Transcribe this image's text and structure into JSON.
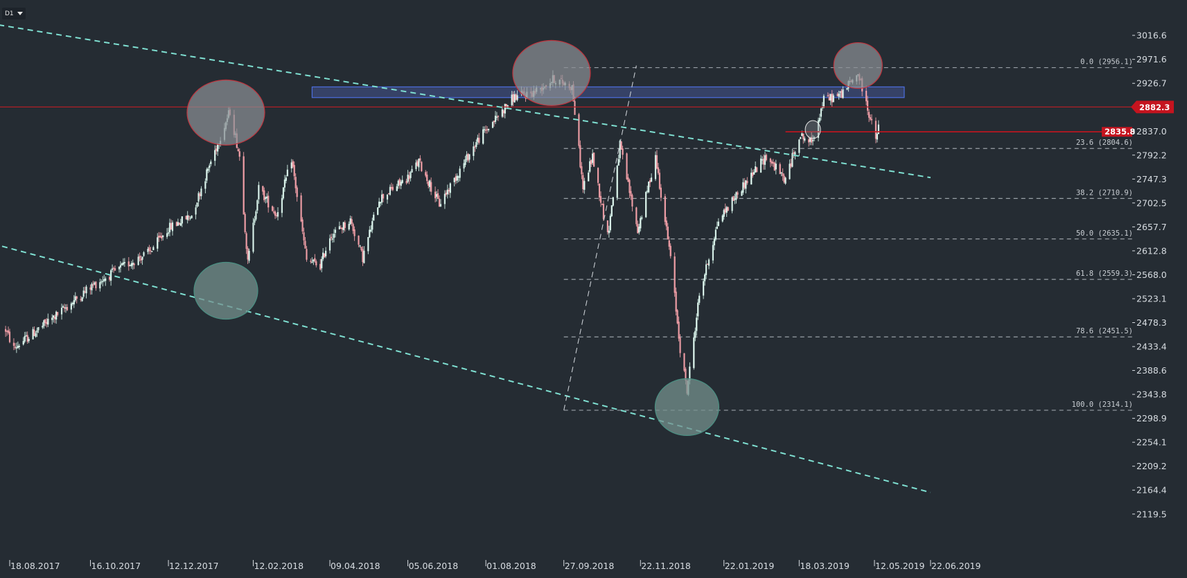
{
  "toolbar": {
    "timeframe": "D1"
  },
  "colors": {
    "background": "#252c33",
    "bull_candle": "#cfeee4",
    "bear_candle": "#ef9ea6",
    "trendline": "#7fe0d2",
    "fib_line": "#9aa1a8",
    "resistance_zone_fill": "#3c4a7a",
    "resistance_zone_border": "#4c6fe0",
    "price_line": "#b01f26",
    "price_badge": "#c5141f",
    "ellipse_top": "#8a8f94",
    "ellipse_bottom": "#74908d"
  },
  "chart_data": {
    "type": "candlestick",
    "title": "",
    "ylim": [
      2110,
      3040
    ],
    "x_ticks": [
      "18.08.2017",
      "16.10.2017",
      "12.12.2017",
      "12.02.2018",
      "09.04.2018",
      "05.06.2018",
      "01.08.2018",
      "27.09.2018",
      "22.11.2018",
      "22.01.2019",
      "18.03.2019",
      "12.05.2019",
      "22.06.2019"
    ],
    "y_ticks": [
      "3016.6",
      "2971.6",
      "2926.7",
      "2882.3",
      "2837.0",
      "2792.2",
      "2747.3",
      "2702.5",
      "2657.7",
      "2612.8",
      "2568.0",
      "2523.1",
      "2478.3",
      "2433.4",
      "2388.6",
      "2343.8",
      "2298.9",
      "2254.1",
      "2209.2",
      "2164.4",
      "2119.5"
    ],
    "y_tick_values": [
      3016.6,
      2971.6,
      2926.7,
      2882.3,
      2837.0,
      2792.2,
      2747.3,
      2702.5,
      2657.7,
      2612.8,
      2568.0,
      2523.1,
      2478.3,
      2433.4,
      2388.6,
      2343.8,
      2298.9,
      2254.1,
      2209.2,
      2164.4,
      2119.5
    ],
    "x_tick_dates": [
      "2017-08-18",
      "2017-10-16",
      "2017-12-12",
      "2018-02-12",
      "2018-04-09",
      "2018-06-05",
      "2018-08-01",
      "2018-09-27",
      "2018-11-22",
      "2019-01-22",
      "2019-03-18",
      "2019-05-12",
      "2019-06-22"
    ],
    "price_path": [
      [
        "2017-08-15",
        2465
      ],
      [
        "2017-08-21",
        2430
      ],
      [
        "2017-09-05",
        2460
      ],
      [
        "2017-09-25",
        2500
      ],
      [
        "2017-10-16",
        2545
      ],
      [
        "2017-11-10",
        2585
      ],
      [
        "2017-11-28",
        2610
      ],
      [
        "2017-12-12",
        2655
      ],
      [
        "2017-12-29",
        2680
      ],
      [
        "2018-01-12",
        2780
      ],
      [
        "2018-01-26",
        2875
      ],
      [
        "2018-02-02",
        2790
      ],
      [
        "2018-02-08",
        2590
      ],
      [
        "2018-02-16",
        2730
      ],
      [
        "2018-03-01",
        2680
      ],
      [
        "2018-03-12",
        2785
      ],
      [
        "2018-03-23",
        2595
      ],
      [
        "2018-04-02",
        2585
      ],
      [
        "2018-04-09",
        2640
      ],
      [
        "2018-04-24",
        2670
      ],
      [
        "2018-05-03",
        2600
      ],
      [
        "2018-05-15",
        2710
      ],
      [
        "2018-06-05",
        2750
      ],
      [
        "2018-06-13",
        2780
      ],
      [
        "2018-06-28",
        2700
      ],
      [
        "2018-07-12",
        2760
      ],
      [
        "2018-07-26",
        2820
      ],
      [
        "2018-08-08",
        2860
      ],
      [
        "2018-08-21",
        2900
      ],
      [
        "2018-09-05",
        2910
      ],
      [
        "2018-09-20",
        2935
      ],
      [
        "2018-10-03",
        2920
      ],
      [
        "2018-10-11",
        2730
      ],
      [
        "2018-10-18",
        2790
      ],
      [
        "2018-10-29",
        2640
      ],
      [
        "2018-11-07",
        2810
      ],
      [
        "2018-11-20",
        2650
      ],
      [
        "2018-12-03",
        2790
      ],
      [
        "2018-12-14",
        2600
      ],
      [
        "2018-12-21",
        2430
      ],
      [
        "2018-12-26",
        2350
      ],
      [
        "2019-01-04",
        2530
      ],
      [
        "2019-01-18",
        2670
      ],
      [
        "2019-02-05",
        2735
      ],
      [
        "2019-02-22",
        2790
      ],
      [
        "2019-03-08",
        2745
      ],
      [
        "2019-03-18",
        2830
      ],
      [
        "2019-03-27",
        2815
      ],
      [
        "2019-04-05",
        2895
      ],
      [
        "2019-04-17",
        2905
      ],
      [
        "2019-04-30",
        2945
      ],
      [
        "2019-05-07",
        2880
      ],
      [
        "2019-05-13",
        2820
      ],
      [
        "2019-05-15",
        2845
      ]
    ],
    "resistance_zone": {
      "y_range": [
        2900,
        2920
      ],
      "x_range": [
        "2018-03-27",
        "2019-06-22"
      ]
    },
    "horizontal_price_line": 2882.3,
    "support_line": {
      "value": 2835.8,
      "x_start": "2019-03-08"
    },
    "trendlines": [
      {
        "from": [
          "2017-07-20",
          3045
        ],
        "to": [
          "2019-06-22",
          2750
        ]
      },
      {
        "from": [
          "2017-07-16",
          2640
        ],
        "to": [
          "2019-06-22",
          2160
        ]
      }
    ],
    "fib_anchor_line": {
      "from": [
        "2018-09-27",
        2314.1
      ],
      "to": [
        "2018-11-19",
        2960
      ]
    },
    "fib_levels": [
      {
        "label": "0.0 (2956.1)",
        "value": 2956.1
      },
      {
        "label": "23.6 (2804.6)",
        "value": 2804.6
      },
      {
        "label": "38.2 (2710.9)",
        "value": 2710.9
      },
      {
        "label": "50.0 (2635.1)",
        "value": 2635.1
      },
      {
        "label": "61.8 (2559.3)",
        "value": 2559.3
      },
      {
        "label": "78.6 (2451.5)",
        "value": 2451.5
      },
      {
        "label": "100.0 (2314.1)",
        "value": 2314.1
      }
    ],
    "fib_x_start": "2018-09-27",
    "current_price_label": "2882.3",
    "support_price_label": "2835.8",
    "highlight_ellipses": [
      {
        "date": "2018-01-23",
        "value": 2872,
        "kind": "top"
      },
      {
        "date": "2018-01-23",
        "value": 2538,
        "kind": "bottom"
      },
      {
        "date": "2018-09-18",
        "value": 2946,
        "kind": "top"
      },
      {
        "date": "2018-12-26",
        "value": 2320,
        "kind": "bottom"
      },
      {
        "date": "2019-04-30",
        "value": 2960,
        "kind": "top"
      },
      {
        "date": "2019-03-28",
        "value": 2840,
        "kind": "small"
      }
    ]
  }
}
